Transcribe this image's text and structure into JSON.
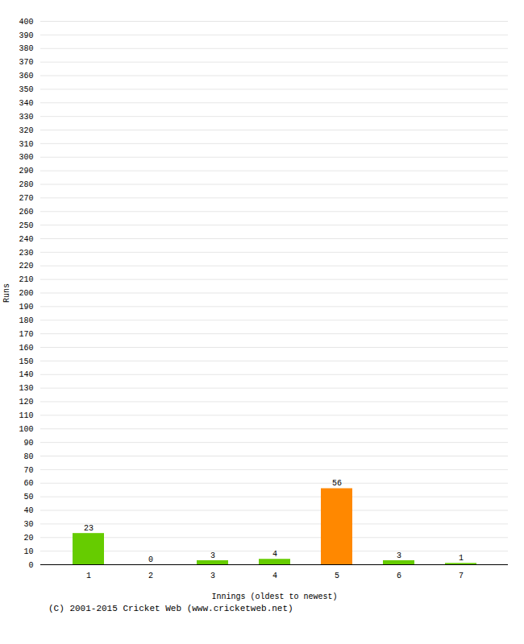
{
  "chart_data": {
    "type": "bar",
    "categories": [
      "1",
      "2",
      "3",
      "4",
      "5",
      "6",
      "7"
    ],
    "values": [
      23,
      0,
      3,
      4,
      56,
      3,
      1
    ],
    "colors": [
      "#66cc00",
      "#66cc00",
      "#66cc00",
      "#66cc00",
      "#ff8800",
      "#66cc00",
      "#66cc00"
    ],
    "xlabel": "Innings (oldest to newest)",
    "ylabel": "Runs",
    "ylim": [
      0,
      400
    ],
    "yticks": [
      0,
      10,
      20,
      30,
      40,
      50,
      60,
      70,
      80,
      90,
      100,
      110,
      120,
      130,
      140,
      150,
      160,
      170,
      180,
      190,
      200,
      210,
      220,
      230,
      240,
      250,
      260,
      270,
      280,
      290,
      300,
      310,
      320,
      330,
      340,
      350,
      360,
      370,
      380,
      390,
      400
    ],
    "grid": true,
    "data_labels": true,
    "annotations": [
      "(C) 2001-2015 Cricket Web (www.cricketweb.net)"
    ]
  }
}
